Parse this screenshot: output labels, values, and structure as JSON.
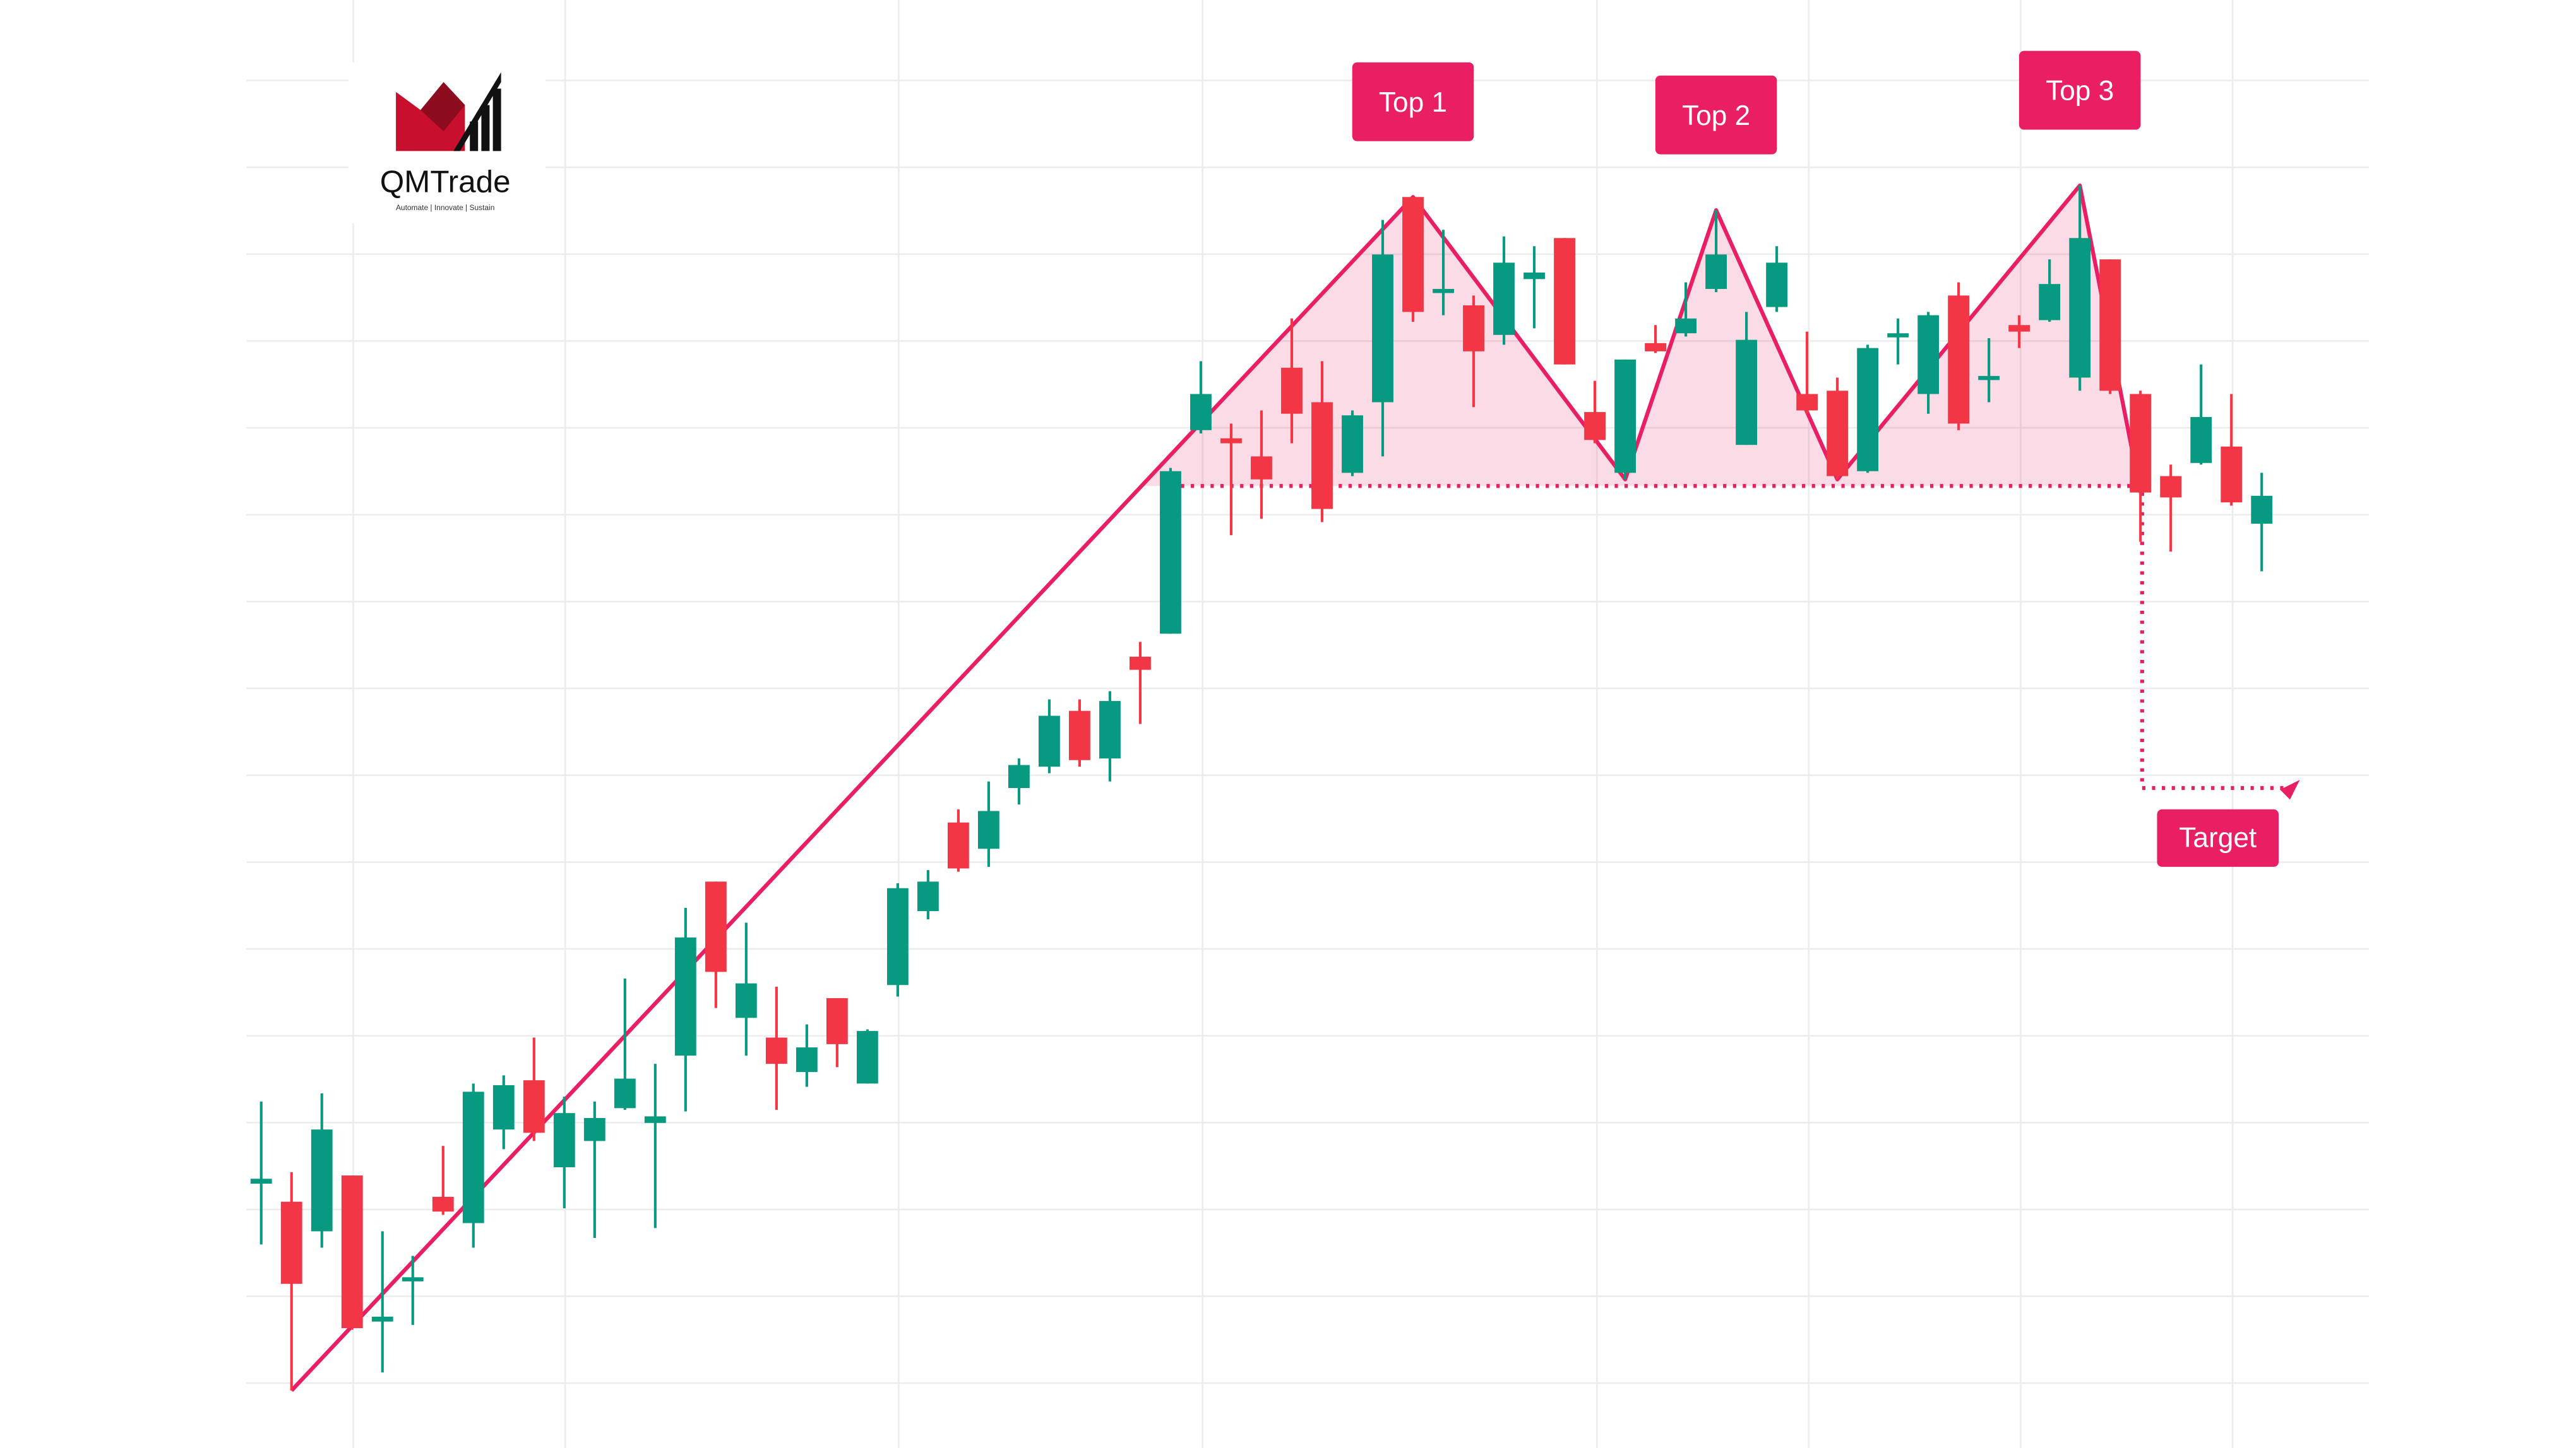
{
  "logo": {
    "name": "QMTrade",
    "tagline": "Automate | Innovate | Sustain"
  },
  "chart_data": {
    "type": "candlestick",
    "up_color": "#089981",
    "down_color": "#f23645",
    "pattern_color": "#e91e63",
    "ylim": [
      18,
      900
    ],
    "open": [
      179,
      168,
      150,
      184,
      95,
      120,
      171,
      155,
      212,
      242,
      189,
      205,
      225,
      216,
      257,
      363,
      280,
      268,
      247,
      292,
      240,
      300,
      345,
      399,
      383,
      420,
      433,
      467,
      438,
      500,
      514,
      638,
      633,
      622,
      676,
      655,
      612,
      655,
      780,
      722,
      714,
      696,
      730,
      755,
      649,
      612,
      691,
      697,
      724,
      629,
      713,
      660,
      662,
      613,
      695,
      660,
      720,
      669,
      702,
      705,
      670,
      742,
      660,
      610,
      618,
      628,
      581
    ],
    "high": [
      229,
      186,
      234,
      184,
      150,
      135,
      202,
      240,
      245,
      268,
      232,
      229,
      304,
      252,
      347,
      363,
      338,
      299,
      276,
      292,
      273,
      362,
      370,
      407,
      424,
      438,
      474,
      474,
      479,
      509,
      615,
      680,
      642,
      650,
      706,
      680,
      650,
      766,
      780,
      760,
      720,
      756,
      750,
      755,
      668,
      681,
      702,
      728,
      772,
      710,
      750,
      698,
      670,
      690,
      706,
      710,
      728,
      694,
      708,
      742,
      787,
      742,
      662,
      617,
      678,
      660,
      612
    ],
    "low": [
      142,
      53,
      140,
      90,
      64,
      93,
      160,
      140,
      200,
      205,
      164,
      146,
      224,
      152,
      223,
      286,
      257,
      224,
      238,
      250,
      240,
      293,
      340,
      369,
      372,
      410,
      429,
      433,
      424,
      459,
      514,
      636,
      574,
      584,
      630,
      582,
      610,
      622,
      704,
      708,
      652,
      690,
      700,
      678,
      630,
      608,
      685,
      695,
      722,
      629,
      710,
      648,
      608,
      612,
      678,
      648,
      638,
      655,
      688,
      704,
      662,
      660,
      570,
      564,
      617,
      592,
      552
    ],
    "close": [
      182,
      118,
      212,
      91,
      98,
      122,
      162,
      235,
      239,
      210,
      222,
      219,
      243,
      220,
      329,
      308,
      301,
      252,
      262,
      264,
      272,
      359,
      363,
      371,
      406,
      434,
      464,
      437,
      473,
      492,
      613,
      660,
      630,
      608,
      648,
      590,
      647,
      745,
      710,
      724,
      686,
      740,
      734,
      678,
      632,
      681,
      686,
      706,
      745,
      693,
      740,
      650,
      610,
      688,
      697,
      708,
      642,
      671,
      698,
      727,
      755,
      662,
      600,
      597,
      646,
      594,
      598
    ],
    "annotations": [
      "Top 1",
      "Top 2",
      "Top 3"
    ],
    "neckline": 604,
    "target": 420,
    "target_label": "Target"
  }
}
